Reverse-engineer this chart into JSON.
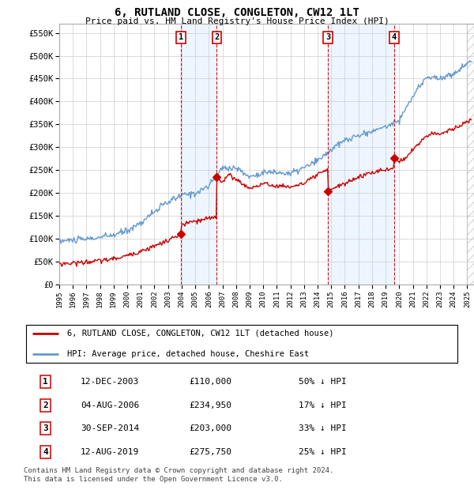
{
  "title": "6, RUTLAND CLOSE, CONGLETON, CW12 1LT",
  "subtitle": "Price paid vs. HM Land Registry's House Price Index (HPI)",
  "ylabel_ticks": [
    "£0",
    "£50K",
    "£100K",
    "£150K",
    "£200K",
    "£250K",
    "£300K",
    "£350K",
    "£400K",
    "£450K",
    "£500K",
    "£550K"
  ],
  "ytick_values": [
    0,
    50000,
    100000,
    150000,
    200000,
    250000,
    300000,
    350000,
    400000,
    450000,
    500000,
    550000
  ],
  "ylim": [
    0,
    570000
  ],
  "xlim_start": 1995.0,
  "xlim_end": 2025.5,
  "hpi_color": "#6699cc",
  "price_color": "#cc0000",
  "background_color": "#ffffff",
  "plot_bg_color": "#ffffff",
  "grid_color": "#cccccc",
  "sale_dates": [
    2003.95,
    2006.58,
    2014.75,
    2019.62
  ],
  "sale_prices": [
    110000,
    234950,
    203000,
    275750
  ],
  "sale_labels": [
    "1",
    "2",
    "3",
    "4"
  ],
  "legend_line1": "6, RUTLAND CLOSE, CONGLETON, CW12 1LT (detached house)",
  "legend_line2": "HPI: Average price, detached house, Cheshire East",
  "table_rows": [
    [
      "1",
      "12-DEC-2003",
      "£110,000",
      "50% ↓ HPI"
    ],
    [
      "2",
      "04-AUG-2006",
      "£234,950",
      "17% ↓ HPI"
    ],
    [
      "3",
      "30-SEP-2014",
      "£203,000",
      "33% ↓ HPI"
    ],
    [
      "4",
      "12-AUG-2019",
      "£275,750",
      "25% ↓ HPI"
    ]
  ],
  "footnote": "Contains HM Land Registry data © Crown copyright and database right 2024.\nThis data is licensed under the Open Government Licence v3.0.",
  "xtick_years": [
    1995,
    1996,
    1997,
    1998,
    1999,
    2000,
    2001,
    2002,
    2003,
    2004,
    2005,
    2006,
    2007,
    2008,
    2009,
    2010,
    2011,
    2012,
    2013,
    2014,
    2015,
    2016,
    2017,
    2018,
    2019,
    2020,
    2021,
    2022,
    2023,
    2024,
    2025
  ],
  "shade_color": "#ddeeff",
  "shade_alpha": 0.5,
  "hatch_start": 2025.0
}
